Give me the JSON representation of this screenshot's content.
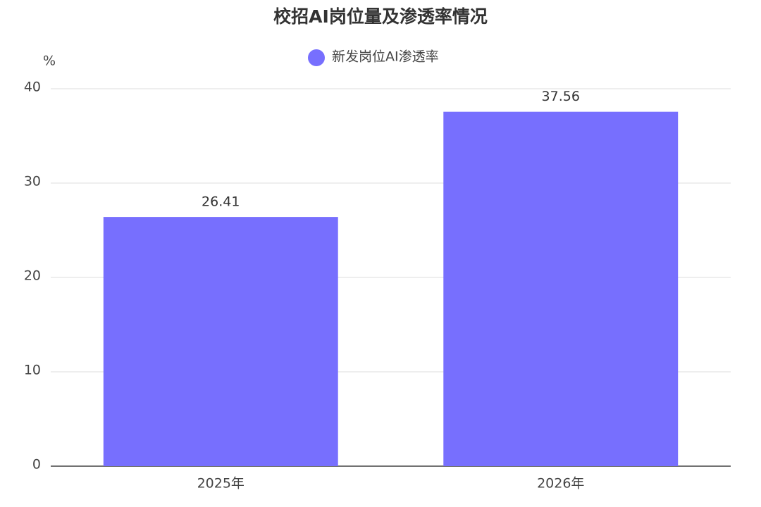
{
  "chart_data": {
    "type": "bar",
    "title": "校招AI岗位量及渗透率情况",
    "y_axis_label": "%",
    "categories": [
      "2025年",
      "2026年"
    ],
    "series": [
      {
        "name": "新发岗位AI渗透率",
        "color": "#776ffe",
        "values": [
          26.41,
          37.56
        ]
      }
    ],
    "ylim": [
      0,
      40
    ],
    "yticks": [
      0,
      10,
      20,
      30,
      40
    ],
    "grid": true,
    "legend": "top",
    "data_labels": true
  }
}
